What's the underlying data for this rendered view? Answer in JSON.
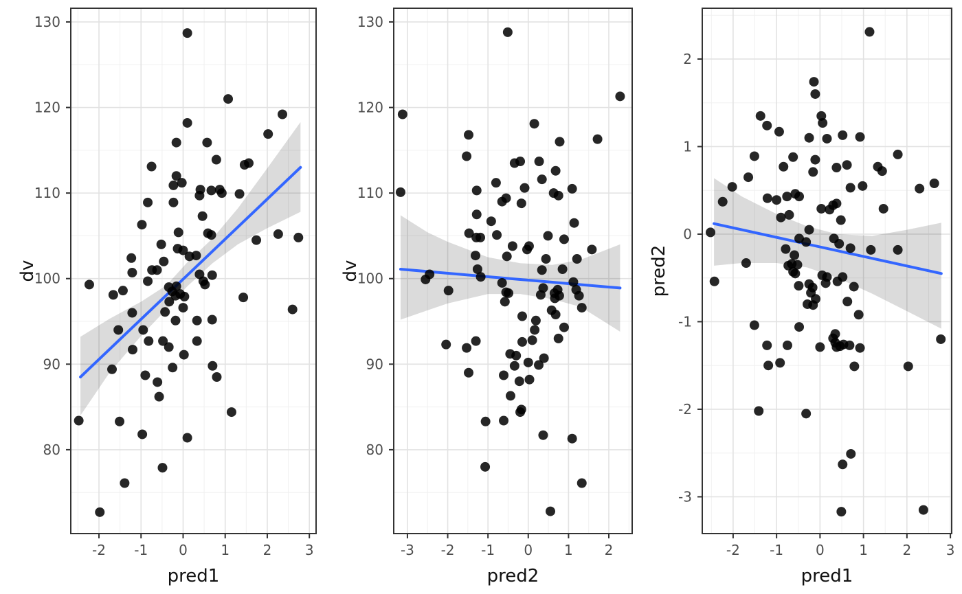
{
  "figure": {
    "background": "#ffffff",
    "style": {
      "point_color": "#000000",
      "point_opacity": 0.85,
      "point_radius": 7,
      "line_color": "#3366FF",
      "line_width": 4,
      "ribbon_color": "#000000",
      "ribbon_opacity": 0.14,
      "grid_major_color": "#E2E2E2",
      "grid_minor_color": "#F0F0F0",
      "panel_border_color": "#333333",
      "tick_mark_color": "#333333",
      "tick_label_color": "#4D4D4D",
      "axis_title_color": "#111111"
    }
  },
  "chart_data": [
    {
      "id": "dv-vs-pred1",
      "type": "scatter",
      "xlabel": "pred1",
      "ylabel": "dv",
      "xlim": [
        -2.67,
        3.16
      ],
      "ylim": [
        70.2,
        131.6
      ],
      "x_ticks": [
        -2,
        -1,
        0,
        1,
        2,
        3
      ],
      "y_ticks": [
        80,
        90,
        100,
        110,
        120,
        130
      ],
      "grid": true,
      "regression_line": {
        "x": [
          -2.44,
          2.79
        ],
        "y": [
          88.5,
          113.0
        ]
      },
      "ribbon": [
        [
          -2.44,
          84.0,
          93.2
        ],
        [
          -1.75,
          89.0,
          95.3
        ],
        [
          -1.0,
          93.3,
          97.3
        ],
        [
          -0.4,
          96.4,
          99.2
        ],
        [
          0.1,
          99.1,
          101.9
        ],
        [
          0.7,
          101.8,
          104.7
        ],
        [
          1.3,
          104.0,
          108.2
        ],
        [
          2.0,
          105.9,
          112.9
        ],
        [
          2.79,
          107.8,
          118.3
        ]
      ],
      "points": [
        [
          0.1,
          128.7
        ],
        [
          1.07,
          121.0
        ],
        [
          2.36,
          119.2
        ],
        [
          0.1,
          118.2
        ],
        [
          2.02,
          116.9
        ],
        [
          -0.16,
          115.9
        ],
        [
          0.57,
          115.9
        ],
        [
          0.79,
          113.9
        ],
        [
          1.46,
          113.3
        ],
        [
          1.56,
          113.5
        ],
        [
          -0.75,
          113.1
        ],
        [
          -0.16,
          112.0
        ],
        [
          -0.23,
          110.9
        ],
        [
          -0.03,
          111.2
        ],
        [
          0.41,
          110.4
        ],
        [
          0.39,
          109.7
        ],
        [
          0.67,
          110.3
        ],
        [
          0.87,
          110.4
        ],
        [
          0.92,
          110.0
        ],
        [
          1.34,
          109.9
        ],
        [
          -0.84,
          108.9
        ],
        [
          -0.23,
          108.9
        ],
        [
          0.46,
          107.3
        ],
        [
          -0.98,
          106.3
        ],
        [
          -0.11,
          105.4
        ],
        [
          0.59,
          105.3
        ],
        [
          0.67,
          105.1
        ],
        [
          1.74,
          104.5
        ],
        [
          2.26,
          105.2
        ],
        [
          2.74,
          104.8
        ],
        [
          -0.52,
          104.0
        ],
        [
          -0.13,
          103.5
        ],
        [
          0.0,
          103.3
        ],
        [
          -1.23,
          102.4
        ],
        [
          0.15,
          102.6
        ],
        [
          0.31,
          102.7
        ],
        [
          -0.46,
          102.0
        ],
        [
          -0.74,
          101.0
        ],
        [
          -0.62,
          101.0
        ],
        [
          -1.21,
          100.7
        ],
        [
          0.39,
          100.5
        ],
        [
          0.69,
          100.4
        ],
        [
          -2.23,
          99.3
        ],
        [
          -0.84,
          99.7
        ],
        [
          -0.34,
          99.0
        ],
        [
          -0.16,
          99.1
        ],
        [
          0.48,
          99.7
        ],
        [
          0.52,
          99.3
        ],
        [
          -1.66,
          98.1
        ],
        [
          -1.43,
          98.6
        ],
        [
          -0.26,
          98.5
        ],
        [
          -0.18,
          98.0
        ],
        [
          -0.07,
          98.2
        ],
        [
          0.03,
          97.9
        ],
        [
          1.43,
          97.8
        ],
        [
          2.6,
          96.4
        ],
        [
          -0.33,
          97.3
        ],
        [
          0.0,
          96.6
        ],
        [
          -1.21,
          96.0
        ],
        [
          -0.43,
          96.1
        ],
        [
          -0.18,
          95.1
        ],
        [
          0.33,
          95.1
        ],
        [
          0.69,
          95.2
        ],
        [
          -1.54,
          94.0
        ],
        [
          -0.95,
          94.0
        ],
        [
          -0.82,
          92.7
        ],
        [
          -0.48,
          92.7
        ],
        [
          -0.34,
          92.0
        ],
        [
          0.33,
          92.7
        ],
        [
          -1.2,
          91.7
        ],
        [
          0.02,
          91.1
        ],
        [
          -1.69,
          89.4
        ],
        [
          -0.25,
          89.6
        ],
        [
          0.7,
          89.8
        ],
        [
          0.8,
          88.5
        ],
        [
          -0.9,
          88.7
        ],
        [
          -0.61,
          87.9
        ],
        [
          -0.57,
          86.2
        ],
        [
          1.15,
          84.4
        ],
        [
          -2.48,
          83.4
        ],
        [
          -1.51,
          83.3
        ],
        [
          -0.97,
          81.8
        ],
        [
          0.1,
          81.4
        ],
        [
          -0.49,
          77.9
        ],
        [
          -1.39,
          76.1
        ],
        [
          -1.98,
          72.7
        ]
      ]
    },
    {
      "id": "dv-vs-pred2",
      "type": "scatter",
      "xlabel": "pred2",
      "ylabel": "dv",
      "xlim": [
        -3.34,
        2.58
      ],
      "ylim": [
        70.2,
        131.6
      ],
      "x_ticks": [
        -3,
        -2,
        -1,
        0,
        1,
        2
      ],
      "y_ticks": [
        80,
        90,
        100,
        110,
        120,
        130
      ],
      "grid": true,
      "regression_line": {
        "x": [
          -3.17,
          2.28
        ],
        "y": [
          101.1,
          98.9
        ]
      },
      "ribbon": [
        [
          -3.17,
          95.2,
          107.4
        ],
        [
          -2.5,
          96.3,
          105.4
        ],
        [
          -2.0,
          97.1,
          104.3
        ],
        [
          -1.0,
          98.2,
          102.5
        ],
        [
          -0.2,
          98.2,
          101.8
        ],
        [
          0.6,
          97.6,
          101.6
        ],
        [
          1.3,
          96.7,
          102.2
        ],
        [
          2.28,
          93.8,
          104.0
        ]
      ],
      "points": [
        [
          -0.51,
          128.8
        ],
        [
          2.28,
          121.3
        ],
        [
          -3.12,
          119.2
        ],
        [
          0.15,
          118.1
        ],
        [
          -1.48,
          116.8
        ],
        [
          -1.53,
          114.3
        ],
        [
          0.78,
          116.0
        ],
        [
          1.72,
          116.3
        ],
        [
          -0.34,
          113.5
        ],
        [
          -0.2,
          113.7
        ],
        [
          0.27,
          113.7
        ],
        [
          0.68,
          112.6
        ],
        [
          0.34,
          111.6
        ],
        [
          -0.8,
          111.2
        ],
        [
          -1.28,
          110.3
        ],
        [
          -0.09,
          110.6
        ],
        [
          1.09,
          110.5
        ],
        [
          0.63,
          110.0
        ],
        [
          0.75,
          109.7
        ],
        [
          -3.17,
          110.1
        ],
        [
          -0.65,
          109.0
        ],
        [
          -0.55,
          109.4
        ],
        [
          -0.17,
          108.8
        ],
        [
          -1.28,
          107.5
        ],
        [
          -0.92,
          106.7
        ],
        [
          1.14,
          106.5
        ],
        [
          -1.47,
          105.3
        ],
        [
          -1.29,
          104.8
        ],
        [
          -1.19,
          104.8
        ],
        [
          -0.78,
          105.1
        ],
        [
          0.49,
          105.0
        ],
        [
          0.89,
          104.6
        ],
        [
          -0.39,
          103.8
        ],
        [
          -0.03,
          103.4
        ],
        [
          0.02,
          103.8
        ],
        [
          1.58,
          103.4
        ],
        [
          -1.31,
          102.7
        ],
        [
          -0.53,
          102.6
        ],
        [
          0.44,
          102.3
        ],
        [
          1.21,
          102.3
        ],
        [
          -1.26,
          101.1
        ],
        [
          -1.18,
          100.2
        ],
        [
          -2.55,
          99.9
        ],
        [
          -2.45,
          100.5
        ],
        [
          -1.98,
          98.6
        ],
        [
          -0.65,
          99.5
        ],
        [
          -0.55,
          98.4
        ],
        [
          -0.49,
          98.3
        ],
        [
          -0.58,
          97.3
        ],
        [
          0.34,
          101.0
        ],
        [
          0.37,
          98.9
        ],
        [
          0.31,
          98.1
        ],
        [
          0.65,
          98.3
        ],
        [
          0.73,
          98.7
        ],
        [
          0.77,
          98.0
        ],
        [
          0.66,
          97.7
        ],
        [
          0.85,
          101.1
        ],
        [
          1.12,
          99.6
        ],
        [
          1.19,
          98.7
        ],
        [
          1.26,
          98.0
        ],
        [
          1.33,
          96.6
        ],
        [
          0.58,
          96.3
        ],
        [
          0.68,
          95.8
        ],
        [
          -0.15,
          95.6
        ],
        [
          0.19,
          95.1
        ],
        [
          0.16,
          94.0
        ],
        [
          0.89,
          94.3
        ],
        [
          -0.15,
          92.6
        ],
        [
          0.1,
          92.8
        ],
        [
          0.75,
          93.0
        ],
        [
          -2.04,
          92.3
        ],
        [
          -1.53,
          91.9
        ],
        [
          -1.3,
          92.7
        ],
        [
          -0.45,
          91.2
        ],
        [
          -0.3,
          91.0
        ],
        [
          -0.34,
          89.8
        ],
        [
          0.0,
          90.2
        ],
        [
          0.03,
          88.2
        ],
        [
          0.26,
          89.9
        ],
        [
          0.39,
          90.7
        ],
        [
          -1.48,
          89.0
        ],
        [
          -0.61,
          88.7
        ],
        [
          -0.22,
          88.0
        ],
        [
          -0.44,
          86.3
        ],
        [
          -0.17,
          84.7
        ],
        [
          -0.2,
          84.4
        ],
        [
          -1.06,
          83.3
        ],
        [
          -0.61,
          83.4
        ],
        [
          0.37,
          81.7
        ],
        [
          1.09,
          81.3
        ],
        [
          -1.07,
          78.0
        ],
        [
          1.33,
          76.1
        ],
        [
          0.55,
          72.8
        ]
      ]
    },
    {
      "id": "pred2-vs-pred1",
      "type": "scatter",
      "xlabel": "pred1",
      "ylabel": "pred2",
      "xlim": [
        -2.71,
        3.03
      ],
      "ylim": [
        -3.42,
        2.58
      ],
      "x_ticks": [
        -2,
        -1,
        0,
        1,
        2,
        3
      ],
      "y_ticks": [
        -3,
        -2,
        -1,
        0,
        1,
        2
      ],
      "grid": true,
      "regression_line": {
        "x": [
          -2.44,
          2.79
        ],
        "y": [
          0.12,
          -0.45
        ]
      },
      "ribbon": [
        [
          -2.44,
          -0.36,
          0.64
        ],
        [
          -1.8,
          -0.33,
          0.43
        ],
        [
          -1.0,
          -0.33,
          0.23
        ],
        [
          -0.3,
          -0.38,
          0.09
        ],
        [
          0.4,
          -0.5,
          0.0
        ],
        [
          1.2,
          -0.68,
          -0.02
        ],
        [
          2.0,
          -0.88,
          0.05
        ],
        [
          2.79,
          -1.08,
          0.13
        ]
      ],
      "points": [
        [
          1.14,
          2.31
        ],
        [
          -0.14,
          1.74
        ],
        [
          -0.11,
          1.6
        ],
        [
          -1.37,
          1.35
        ],
        [
          -1.22,
          1.24
        ],
        [
          -0.94,
          1.17
        ],
        [
          0.03,
          1.35
        ],
        [
          0.06,
          1.27
        ],
        [
          -0.25,
          1.1
        ],
        [
          0.16,
          1.09
        ],
        [
          0.52,
          1.13
        ],
        [
          0.92,
          1.11
        ],
        [
          -1.51,
          0.89
        ],
        [
          -0.62,
          0.88
        ],
        [
          -0.11,
          0.85
        ],
        [
          -0.84,
          0.77
        ],
        [
          -0.16,
          0.71
        ],
        [
          0.38,
          0.76
        ],
        [
          0.62,
          0.79
        ],
        [
          1.33,
          0.77
        ],
        [
          1.43,
          0.72
        ],
        [
          1.79,
          0.91
        ],
        [
          -1.65,
          0.65
        ],
        [
          -2.02,
          0.54
        ],
        [
          0.7,
          0.53
        ],
        [
          0.98,
          0.55
        ],
        [
          2.29,
          0.52
        ],
        [
          2.63,
          0.58
        ],
        [
          -2.24,
          0.37
        ],
        [
          -1.21,
          0.41
        ],
        [
          -1.0,
          0.39
        ],
        [
          -0.76,
          0.43
        ],
        [
          -0.57,
          0.46
        ],
        [
          -0.48,
          0.43
        ],
        [
          -0.9,
          0.19
        ],
        [
          -0.71,
          0.22
        ],
        [
          0.03,
          0.29
        ],
        [
          0.22,
          0.28
        ],
        [
          0.3,
          0.33
        ],
        [
          0.38,
          0.35
        ],
        [
          0.48,
          0.16
        ],
        [
          1.46,
          0.29
        ],
        [
          -2.52,
          0.02
        ],
        [
          -0.25,
          0.05
        ],
        [
          -0.48,
          -0.05
        ],
        [
          -0.32,
          -0.09
        ],
        [
          0.32,
          -0.05
        ],
        [
          0.44,
          -0.11
        ],
        [
          1.17,
          -0.18
        ],
        [
          1.79,
          -0.18
        ],
        [
          0.7,
          -0.16
        ],
        [
          -0.79,
          -0.17
        ],
        [
          -0.59,
          -0.24
        ],
        [
          -1.7,
          -0.33
        ],
        [
          -2.43,
          -0.54
        ],
        [
          -0.73,
          -0.36
        ],
        [
          -0.65,
          -0.34
        ],
        [
          -0.52,
          -0.35
        ],
        [
          -0.62,
          -0.43
        ],
        [
          -0.57,
          -0.45
        ],
        [
          0.05,
          -0.47
        ],
        [
          0.16,
          -0.49
        ],
        [
          0.13,
          -0.56
        ],
        [
          0.4,
          -0.54
        ],
        [
          0.52,
          -0.49
        ],
        [
          -0.49,
          -0.59
        ],
        [
          -0.25,
          -0.57
        ],
        [
          -0.17,
          -0.61
        ],
        [
          -0.21,
          -0.67
        ],
        [
          0.78,
          -0.6
        ],
        [
          -0.1,
          -0.74
        ],
        [
          -0.29,
          -0.8
        ],
        [
          -0.16,
          -0.81
        ],
        [
          0.63,
          -0.77
        ],
        [
          0.89,
          -0.92
        ],
        [
          -1.51,
          -1.04
        ],
        [
          -0.48,
          -1.06
        ],
        [
          0.35,
          -1.14
        ],
        [
          2.78,
          -1.2
        ],
        [
          -1.22,
          -1.27
        ],
        [
          -0.75,
          -1.27
        ],
        [
          0.0,
          -1.29
        ],
        [
          0.3,
          -1.19
        ],
        [
          0.35,
          -1.24
        ],
        [
          0.38,
          -1.29
        ],
        [
          0.46,
          -1.28
        ],
        [
          0.54,
          -1.26
        ],
        [
          0.68,
          -1.27
        ],
        [
          0.92,
          -1.3
        ],
        [
          0.79,
          -1.51
        ],
        [
          2.03,
          -1.51
        ],
        [
          -1.19,
          -1.5
        ],
        [
          -0.92,
          -1.47
        ],
        [
          -1.41,
          -2.02
        ],
        [
          -0.32,
          -2.05
        ],
        [
          0.71,
          -2.51
        ],
        [
          0.52,
          -2.63
        ],
        [
          0.49,
          -3.17
        ],
        [
          2.38,
          -3.15
        ]
      ]
    }
  ]
}
